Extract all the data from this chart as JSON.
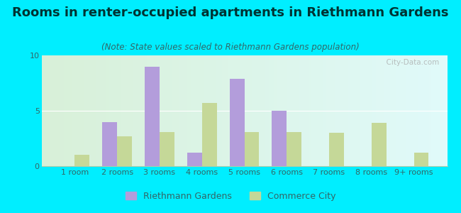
{
  "title": "Rooms in renter-occupied apartments in Riethmann Gardens",
  "subtitle": "(Note: State values scaled to Riethmann Gardens population)",
  "categories": [
    "1 room",
    "2 rooms",
    "3 rooms",
    "4 rooms",
    "5 rooms",
    "6 rooms",
    "7 rooms",
    "8 rooms",
    "9+ rooms"
  ],
  "riethmann_values": [
    0,
    4.0,
    9.0,
    1.2,
    7.9,
    5.0,
    0,
    0,
    0
  ],
  "commerce_values": [
    1.0,
    2.7,
    3.1,
    5.7,
    3.1,
    3.1,
    3.0,
    3.9,
    1.2
  ],
  "riethmann_color": "#b39ddb",
  "commerce_color": "#c5d898",
  "ylim": [
    0,
    10
  ],
  "yticks": [
    0,
    5,
    10
  ],
  "outer_bg": "#00eeff",
  "bar_width": 0.35,
  "legend_labels": [
    "Riethmann Gardens",
    "Commerce City"
  ],
  "watermark": "  City-Data.com",
  "title_fontsize": 13,
  "subtitle_fontsize": 8.5,
  "tick_fontsize": 8,
  "legend_fontsize": 9
}
